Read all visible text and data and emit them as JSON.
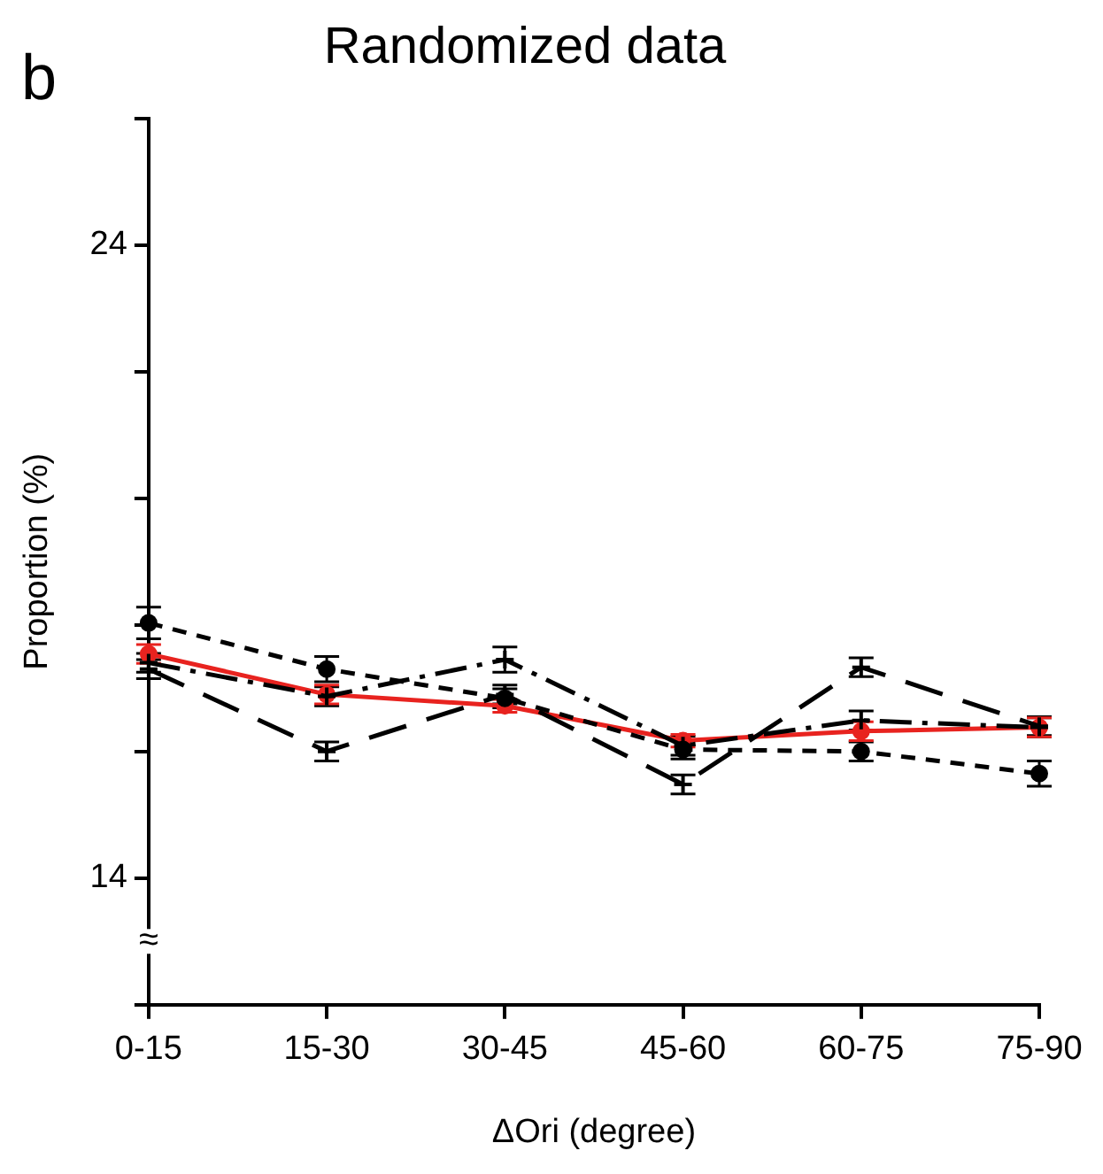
{
  "chart_data": {
    "type": "line",
    "title": "Randomized data",
    "xlabel": "ΔOri (degree)",
    "ylabel": "Proportion (%)",
    "annotations": [
      "b",
      "≈"
    ],
    "categories": [
      "0-15",
      "15-30",
      "30-45",
      "45-60",
      "60-75",
      "75-90"
    ],
    "ylim": [
      12,
      26
    ],
    "yticks": [
      {
        "value": 12,
        "label": null
      },
      14,
      {
        "value": 16,
        "label": null
      },
      {
        "value": 18,
        "label": null
      },
      {
        "value": 20,
        "label": null
      },
      {
        "value": 22,
        "label": null
      },
      24,
      {
        "value": 26,
        "label": null
      }
    ],
    "grid": false,
    "legend": false,
    "marker": "circle",
    "series": [
      {
        "color": "#000000",
        "line_style": "dashed",
        "values": [
          18.03,
          17.3,
          16.84,
          16.03,
          16.0,
          15.65
        ],
        "errors": [
          0.25,
          0.2,
          0.15,
          0.15,
          0.15,
          0.2
        ]
      },
      {
        "color": "#000000",
        "line_style": "longdash",
        "marker": "cross",
        "values": [
          17.3,
          16.0,
          16.9,
          15.48,
          17.33,
          16.4
        ],
        "errors": [
          0.15,
          0.15,
          0.15,
          0.15,
          0.15,
          0.15
        ]
      },
      {
        "color": "#000000",
        "line_style": "dashdot",
        "marker": "cross",
        "values": [
          17.4,
          16.87,
          17.45,
          16.09,
          16.49,
          16.38
        ],
        "errors": [
          0.15,
          0.15,
          0.2,
          0.15,
          0.15,
          0.15
        ]
      },
      {
        "color": "#e8231f",
        "line_style": "solid",
        "values": [
          17.54,
          16.9,
          16.72,
          16.17,
          16.32,
          16.38
        ],
        "errors": [
          0.15,
          0.15,
          0.1,
          0.1,
          0.15,
          0.15
        ]
      }
    ]
  }
}
